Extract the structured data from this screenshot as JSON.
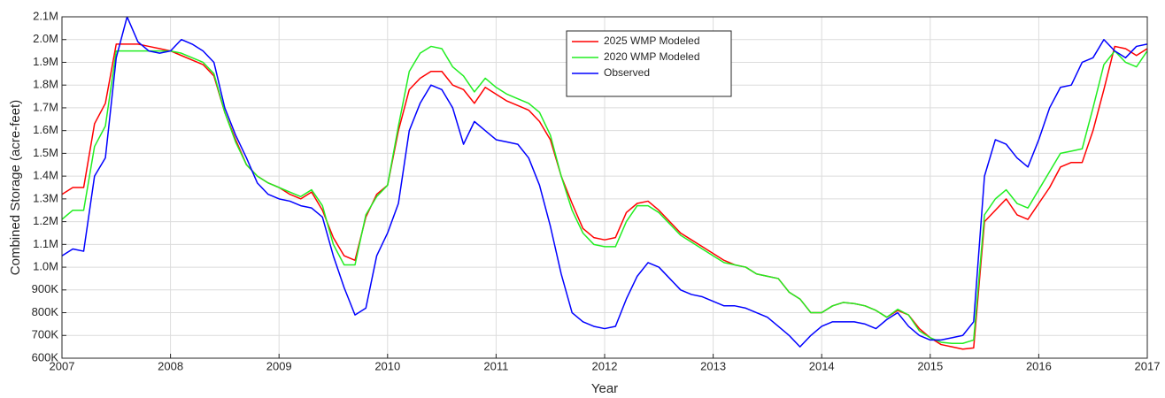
{
  "chart_data": {
    "type": "line",
    "x_label": "Year",
    "y_label": "Combined Storage (acre-feet)",
    "xlim": [
      2007,
      2017
    ],
    "xticks": [
      2007,
      2008,
      2009,
      2010,
      2011,
      2012,
      2013,
      2014,
      2015,
      2016,
      2017
    ],
    "ylim": [
      600000,
      2100000
    ],
    "yticks": [
      {
        "value": 600000,
        "label": "600K"
      },
      {
        "value": 700000,
        "label": "700K"
      },
      {
        "value": 800000,
        "label": "800K"
      },
      {
        "value": 900000,
        "label": "900K"
      },
      {
        "value": 1000000,
        "label": "1.0M"
      },
      {
        "value": 1100000,
        "label": "1.1M"
      },
      {
        "value": 1200000,
        "label": "1.2M"
      },
      {
        "value": 1300000,
        "label": "1.3M"
      },
      {
        "value": 1400000,
        "label": "1.4M"
      },
      {
        "value": 1500000,
        "label": "1.5M"
      },
      {
        "value": 1600000,
        "label": "1.6M"
      },
      {
        "value": 1700000,
        "label": "1.7M"
      },
      {
        "value": 1800000,
        "label": "1.8M"
      },
      {
        "value": 1900000,
        "label": "1.9M"
      },
      {
        "value": 2000000,
        "label": "2.0M"
      },
      {
        "value": 2100000,
        "label": "2.1M"
      }
    ],
    "grid": true,
    "legend": "upper center",
    "x": [
      2007,
      2007.1,
      2007.2,
      2007.3,
      2007.4,
      2007.5,
      2007.6,
      2007.7,
      2007.8,
      2007.9,
      2008,
      2008.1,
      2008.2,
      2008.3,
      2008.4,
      2008.5,
      2008.6,
      2008.7,
      2008.8,
      2008.9,
      2009,
      2009.1,
      2009.2,
      2009.3,
      2009.4,
      2009.5,
      2009.6,
      2009.7,
      2009.8,
      2009.9,
      2010,
      2010.1,
      2010.2,
      2010.3,
      2010.4,
      2010.5,
      2010.6,
      2010.7,
      2010.8,
      2010.9,
      2011,
      2011.1,
      2011.2,
      2011.3,
      2011.4,
      2011.5,
      2011.6,
      2011.7,
      2011.8,
      2011.9,
      2012,
      2012.1,
      2012.2,
      2012.3,
      2012.4,
      2012.5,
      2012.6,
      2012.7,
      2012.8,
      2012.9,
      2013,
      2013.1,
      2013.2,
      2013.3,
      2013.4,
      2013.5,
      2013.6,
      2013.7,
      2013.8,
      2013.9,
      2014,
      2014.1,
      2014.2,
      2014.3,
      2014.4,
      2014.5,
      2014.6,
      2014.7,
      2014.8,
      2014.9,
      2015,
      2015.1,
      2015.2,
      2015.3,
      2015.4,
      2015.5,
      2015.6,
      2015.7,
      2015.8,
      2015.9,
      2016,
      2016.1,
      2016.2,
      2016.3,
      2016.4,
      2016.5,
      2016.6,
      2016.7,
      2016.8,
      2016.9,
      2017
    ],
    "series": [
      {
        "name": "2025 WMP Modeled",
        "color": "#ff0000",
        "values": [
          1320000,
          1350000,
          1350000,
          1630000,
          1720000,
          1980000,
          1980000,
          1980000,
          1970000,
          1960000,
          1950000,
          1930000,
          1910000,
          1890000,
          1840000,
          1680000,
          1560000,
          1450000,
          1400000,
          1370000,
          1350000,
          1320000,
          1300000,
          1330000,
          1250000,
          1130000,
          1050000,
          1030000,
          1220000,
          1320000,
          1360000,
          1600000,
          1780000,
          1830000,
          1860000,
          1860000,
          1800000,
          1780000,
          1720000,
          1790000,
          1760000,
          1730000,
          1710000,
          1690000,
          1640000,
          1560000,
          1400000,
          1280000,
          1170000,
          1130000,
          1120000,
          1130000,
          1240000,
          1280000,
          1290000,
          1250000,
          1200000,
          1150000,
          1120000,
          1090000,
          1060000,
          1030000,
          1010000,
          1000000,
          970000,
          960000,
          950000,
          890000,
          860000,
          800000,
          800000,
          830000,
          845000,
          840000,
          830000,
          810000,
          780000,
          810000,
          790000,
          730000,
          690000,
          660000,
          650000,
          640000,
          645000,
          1200000,
          1250000,
          1300000,
          1230000,
          1210000,
          1280000,
          1350000,
          1440000,
          1460000,
          1460000,
          1600000,
          1780000,
          1970000,
          1960000,
          1930000,
          1960000
        ]
      },
      {
        "name": "2020 WMP Modeled",
        "color": "#22ee22",
        "values": [
          1210000,
          1250000,
          1250000,
          1530000,
          1620000,
          1950000,
          1950000,
          1950000,
          1950000,
          1950000,
          1950000,
          1940000,
          1920000,
          1900000,
          1850000,
          1680000,
          1550000,
          1450000,
          1400000,
          1370000,
          1350000,
          1330000,
          1310000,
          1340000,
          1270000,
          1100000,
          1010000,
          1010000,
          1230000,
          1310000,
          1360000,
          1620000,
          1860000,
          1940000,
          1970000,
          1960000,
          1880000,
          1840000,
          1770000,
          1830000,
          1790000,
          1760000,
          1740000,
          1720000,
          1680000,
          1580000,
          1400000,
          1250000,
          1150000,
          1100000,
          1090000,
          1090000,
          1200000,
          1270000,
          1270000,
          1240000,
          1190000,
          1140000,
          1110000,
          1080000,
          1050000,
          1020000,
          1010000,
          1000000,
          970000,
          960000,
          950000,
          890000,
          860000,
          800000,
          800000,
          830000,
          845000,
          840000,
          830000,
          810000,
          780000,
          815000,
          790000,
          720000,
          690000,
          670000,
          665000,
          665000,
          680000,
          1230000,
          1300000,
          1340000,
          1280000,
          1260000,
          1340000,
          1420000,
          1500000,
          1510000,
          1520000,
          1700000,
          1890000,
          1950000,
          1900000,
          1880000,
          1950000
        ]
      },
      {
        "name": "Observed",
        "color": "#0000ff",
        "values": [
          1050000,
          1080000,
          1070000,
          1400000,
          1480000,
          1920000,
          2100000,
          1990000,
          1950000,
          1940000,
          1950000,
          2000000,
          1980000,
          1950000,
          1900000,
          1700000,
          1580000,
          1480000,
          1370000,
          1320000,
          1300000,
          1290000,
          1270000,
          1260000,
          1220000,
          1050000,
          910000,
          790000,
          820000,
          1050000,
          1150000,
          1280000,
          1600000,
          1720000,
          1800000,
          1780000,
          1700000,
          1540000,
          1640000,
          1600000,
          1560000,
          1550000,
          1540000,
          1480000,
          1360000,
          1180000,
          970000,
          800000,
          760000,
          740000,
          730000,
          740000,
          860000,
          960000,
          1020000,
          1000000,
          950000,
          900000,
          880000,
          870000,
          850000,
          830000,
          830000,
          820000,
          800000,
          780000,
          740000,
          700000,
          650000,
          700000,
          740000,
          760000,
          760000,
          760000,
          750000,
          730000,
          770000,
          800000,
          740000,
          700000,
          680000,
          680000,
          690000,
          700000,
          760000,
          1400000,
          1560000,
          1540000,
          1480000,
          1440000,
          1560000,
          1700000,
          1790000,
          1800000,
          1900000,
          1920000,
          2000000,
          1950000,
          1920000,
          1970000,
          1980000
        ]
      }
    ]
  }
}
